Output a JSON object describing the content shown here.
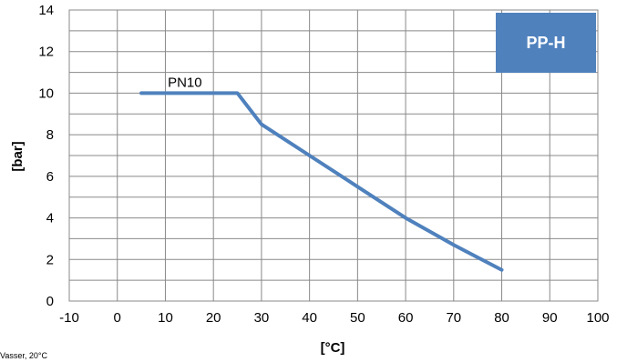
{
  "chart_data": {
    "type": "line",
    "xlabel": "[°C]",
    "ylabel": "[bar]",
    "xlim": [
      -10,
      100
    ],
    "ylim": [
      0,
      14
    ],
    "x_ticks": [
      -10,
      0,
      10,
      20,
      30,
      40,
      50,
      60,
      70,
      80,
      90,
      100
    ],
    "y_ticks": [
      0,
      2,
      4,
      6,
      8,
      10,
      12,
      14
    ],
    "grid": true,
    "series": [
      {
        "name": "PN10",
        "color": "#4f81bd",
        "x": [
          5,
          25,
          30,
          40,
          50,
          60,
          70,
          80
        ],
        "y": [
          10,
          10,
          8.5,
          7,
          5.5,
          4,
          2.7,
          1.5
        ]
      }
    ],
    "badge": {
      "text": "PP-H",
      "color": "#4f81bd"
    },
    "footnote": "Vasser, 20°C"
  }
}
